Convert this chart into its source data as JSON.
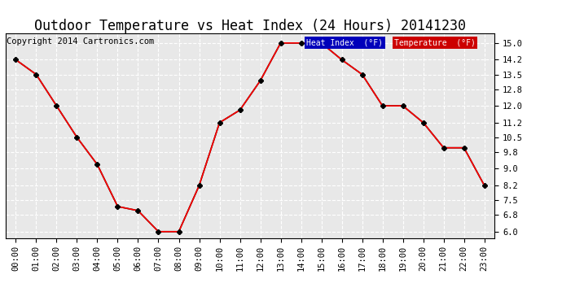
{
  "title": "Outdoor Temperature vs Heat Index (24 Hours) 20141230",
  "copyright": "Copyright 2014 Cartronics.com",
  "hours": [
    "00:00",
    "01:00",
    "02:00",
    "03:00",
    "04:00",
    "05:00",
    "06:00",
    "07:00",
    "08:00",
    "09:00",
    "10:00",
    "11:00",
    "12:00",
    "13:00",
    "14:00",
    "15:00",
    "16:00",
    "17:00",
    "18:00",
    "19:00",
    "20:00",
    "21:00",
    "22:00",
    "23:00"
  ],
  "temperature": [
    14.2,
    13.5,
    12.0,
    10.5,
    9.2,
    7.2,
    7.0,
    6.0,
    6.0,
    8.2,
    11.2,
    11.8,
    13.2,
    15.0,
    15.0,
    15.0,
    14.2,
    13.5,
    12.0,
    12.0,
    11.2,
    10.0,
    10.0,
    8.2
  ],
  "heat_index": [
    14.2,
    13.5,
    12.0,
    10.5,
    9.2,
    7.2,
    7.0,
    6.0,
    6.0,
    8.2,
    11.2,
    11.8,
    13.2,
    15.0,
    15.0,
    15.0,
    14.2,
    13.5,
    12.0,
    12.0,
    11.2,
    10.0,
    10.0,
    8.2
  ],
  "ylim": [
    5.7,
    15.45
  ],
  "yticks": [
    6.0,
    6.8,
    7.5,
    8.2,
    9.0,
    9.8,
    10.5,
    11.2,
    12.0,
    12.8,
    13.5,
    14.2,
    15.0
  ],
  "temp_color": "#ff0000",
  "heat_index_color": "#000000",
  "bg_color": "#ffffff",
  "plot_bg_color": "#e8e8e8",
  "grid_color": "#ffffff",
  "legend_heat_bg": "#0000bb",
  "legend_temp_bg": "#cc0000",
  "legend_text_color": "#ffffff",
  "title_fontsize": 12,
  "copyright_fontsize": 7.5,
  "tick_fontsize": 7.5,
  "marker": "D",
  "marker_size": 3,
  "line_width": 1.2
}
